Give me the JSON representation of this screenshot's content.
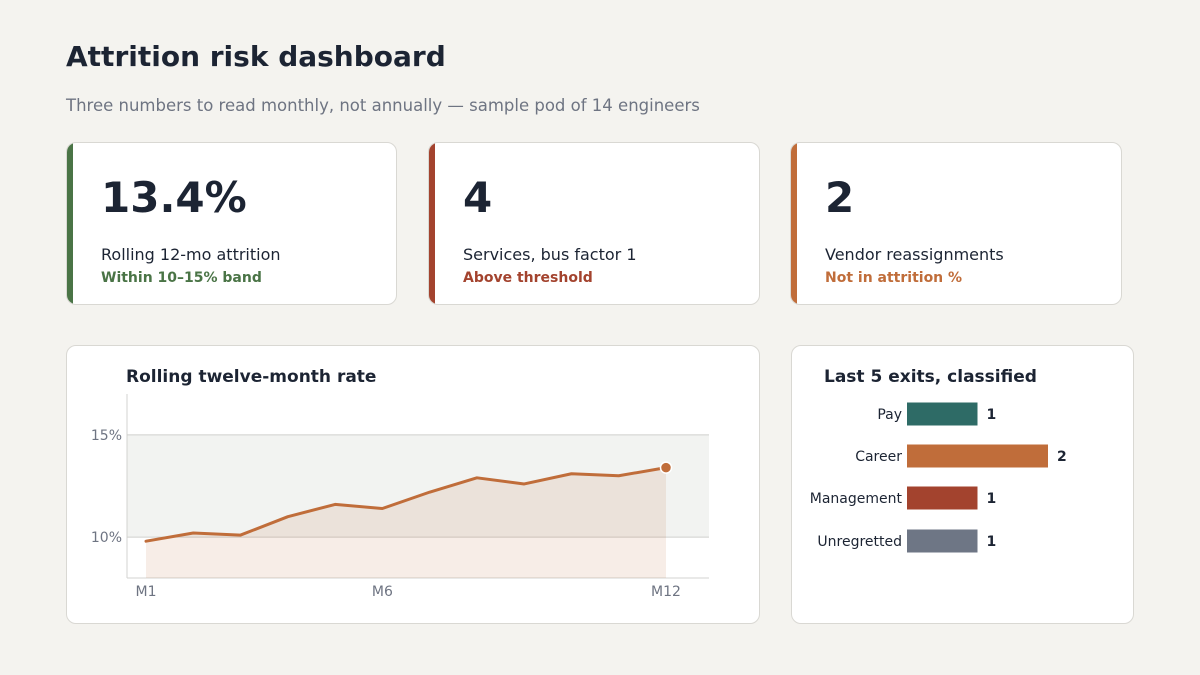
{
  "header": {
    "title": "Attrition risk dashboard",
    "subtitle": "Three numbers to read monthly, not annually — sample pod of 14 engineers"
  },
  "kpis": [
    {
      "value": "13.4%",
      "label": "Rolling 12-mo attrition",
      "status": "Within 10–15% band",
      "color": "#4a7446"
    },
    {
      "value": "4",
      "label": "Services, bus factor 1",
      "status": "Above threshold",
      "color": "#a3432e"
    },
    {
      "value": "2",
      "label": "Vendor reassignments",
      "status": "Not in attrition %",
      "color": "#c06d3a"
    }
  ],
  "chart_data": [
    {
      "type": "line",
      "title": "Rolling twelve-month rate",
      "x": [
        "M1",
        "M2",
        "M3",
        "M4",
        "M5",
        "M6",
        "M7",
        "M8",
        "M9",
        "M10",
        "M11",
        "M12"
      ],
      "x_tick_labels": [
        "M1",
        "M6",
        "M12"
      ],
      "series": [
        {
          "values": [
            9.8,
            10.2,
            10.1,
            11.0,
            11.6,
            11.4,
            12.2,
            12.9,
            12.6,
            13.1,
            13.0,
            13.4
          ],
          "color": "#c06d3a"
        }
      ],
      "y_ticks": [
        10,
        15
      ],
      "y_tick_labels": [
        "10%",
        "15%"
      ],
      "ylim": [
        8,
        17
      ],
      "band": [
        10,
        15
      ],
      "last_point_marked": true,
      "area_fill": true
    },
    {
      "type": "bar",
      "orientation": "horizontal",
      "title": "Last 5 exits, classified",
      "categories": [
        "Pay",
        "Career",
        "Management",
        "Unregretted"
      ],
      "values": [
        1,
        2,
        1,
        1
      ],
      "colors": [
        "#2e6b66",
        "#c06d3a",
        "#a3432e",
        "#6e7685"
      ],
      "xlim": [
        0,
        2
      ]
    }
  ]
}
